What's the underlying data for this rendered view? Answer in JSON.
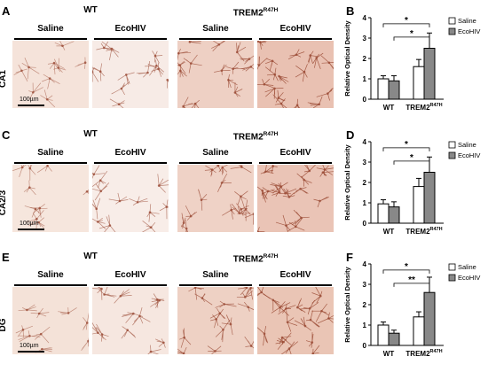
{
  "panels": [
    {
      "left_label": "A",
      "chart_label": "B",
      "region": "CA1",
      "scale_bar": "100µm",
      "groups": [
        {
          "name": "WT"
        },
        {
          "name": "TREM2",
          "sup": "R47H"
        }
      ],
      "conditions": [
        "Saline",
        "EcoHIV",
        "Saline",
        "EcoHIV"
      ],
      "tile_colors": [
        "#f5e3da",
        "#f7ebe6",
        "#eed0c4",
        "#e9c1b2"
      ]
    },
    {
      "left_label": "C",
      "chart_label": "D",
      "region": "CA2/3",
      "scale_bar": "100µm",
      "groups": [
        {
          "name": "WT"
        },
        {
          "name": "TREM2",
          "sup": "R47H"
        }
      ],
      "conditions": [
        "Saline",
        "EcoHIV",
        "Saline",
        "EcoHIV"
      ],
      "tile_colors": [
        "#f6e6dd",
        "#f8ede8",
        "#efd2c6",
        "#eac4b6"
      ]
    },
    {
      "left_label": "E",
      "chart_label": "F",
      "region": "DG",
      "scale_bar": "100µm",
      "groups": [
        {
          "name": "WT"
        },
        {
          "name": "TREM2",
          "sup": "R47H"
        }
      ],
      "conditions": [
        "Saline",
        "EcoHIV",
        "Saline",
        "EcoHIV"
      ],
      "tile_colors": [
        "#f4e2d8",
        "#f6e7e0",
        "#eed1c4",
        "#eac5b5"
      ]
    }
  ],
  "colors": {
    "saline": "#ffffff",
    "ecohiv": "#888888",
    "stain": "#9a4a34"
  },
  "chart_data": [
    {
      "type": "bar",
      "categories": [
        "WT",
        "TREM2R47H"
      ],
      "category_labels": [
        {
          "name": "WT"
        },
        {
          "name": "TREM2",
          "sup": "R47H"
        }
      ],
      "series": [
        {
          "name": "Saline",
          "values": [
            1.0,
            1.6
          ],
          "errors": [
            0.15,
            0.35
          ]
        },
        {
          "name": "EcoHIV",
          "values": [
            0.9,
            2.5
          ],
          "errors": [
            0.25,
            0.75
          ]
        }
      ],
      "ylabel": "Relative Optical Density",
      "ylim": [
        0,
        4
      ],
      "yticks": [
        0,
        1,
        2,
        3,
        4
      ],
      "legend": "top-right",
      "significance": [
        {
          "from": "WT",
          "to": "TREM2R47H EcoHIV",
          "label": "*"
        },
        {
          "from": "WT EcoHIV",
          "to": "TREM2R47H EcoHIV",
          "label": "*"
        }
      ]
    },
    {
      "type": "bar",
      "categories": [
        "WT",
        "TREM2R47H"
      ],
      "category_labels": [
        {
          "name": "WT"
        },
        {
          "name": "TREM2",
          "sup": "R47H"
        }
      ],
      "series": [
        {
          "name": "Saline",
          "values": [
            0.95,
            1.8
          ],
          "errors": [
            0.2,
            0.4
          ]
        },
        {
          "name": "EcoHIV",
          "values": [
            0.8,
            2.5
          ],
          "errors": [
            0.25,
            0.75
          ]
        }
      ],
      "ylabel": "Relative Optical Density",
      "ylim": [
        0,
        4
      ],
      "yticks": [
        0,
        1,
        2,
        3,
        4
      ],
      "legend": "top-right",
      "significance": [
        {
          "from": "WT",
          "to": "TREM2R47H EcoHIV",
          "label": "*"
        },
        {
          "from": "WT EcoHIV",
          "to": "TREM2R47H EcoHIV",
          "label": "*"
        }
      ]
    },
    {
      "type": "bar",
      "categories": [
        "WT",
        "TREM2R47H"
      ],
      "category_labels": [
        {
          "name": "WT"
        },
        {
          "name": "TREM2",
          "sup": "R47H"
        }
      ],
      "series": [
        {
          "name": "Saline",
          "values": [
            1.0,
            1.4
          ],
          "errors": [
            0.15,
            0.25
          ]
        },
        {
          "name": "EcoHIV",
          "values": [
            0.6,
            2.6
          ],
          "errors": [
            0.15,
            0.75
          ]
        }
      ],
      "ylabel": "Relative Optical Density",
      "ylim": [
        0,
        4
      ],
      "yticks": [
        0,
        1,
        2,
        3,
        4
      ],
      "legend": "top-right",
      "significance": [
        {
          "from": "WT",
          "to": "TREM2R47H EcoHIV",
          "label": "*"
        },
        {
          "from": "WT EcoHIV",
          "to": "TREM2R47H EcoHIV",
          "label": "**"
        }
      ]
    }
  ]
}
